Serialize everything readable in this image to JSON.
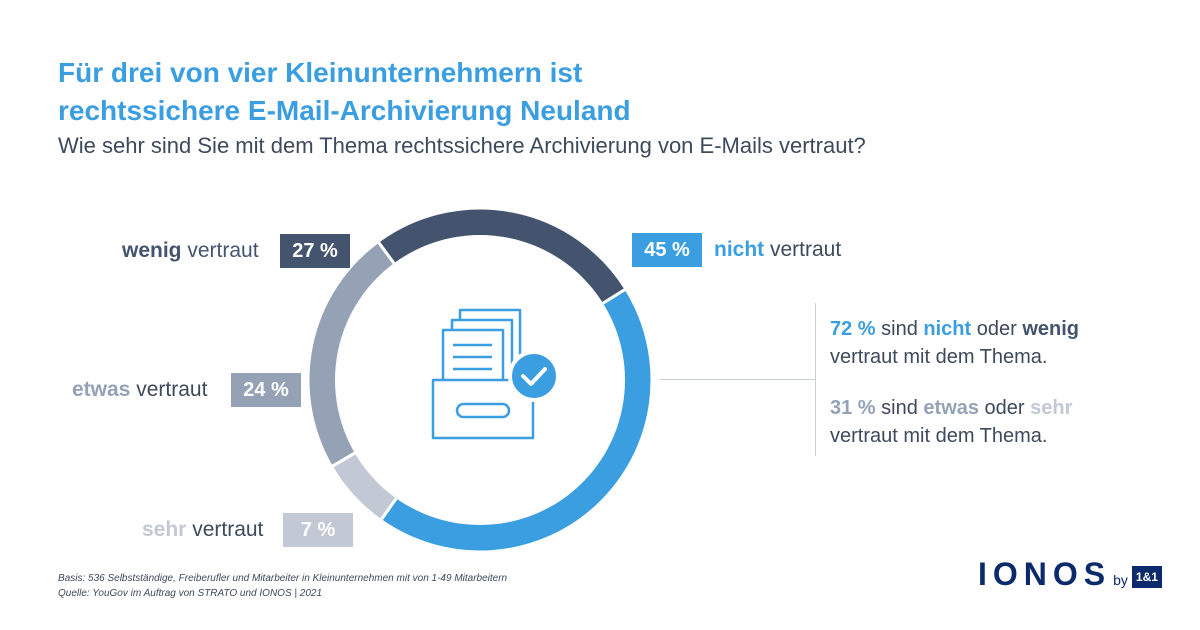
{
  "title_line1": "Für drei von vier Kleinunternehmern ist",
  "title_line2": "rechtssichere E-Mail-Archivierung Neuland",
  "subtitle": "Wie sehr sind Sie mit dem Thema rechtssichere Archivierung von E-Mails vertraut?",
  "chart_data": {
    "type": "pie",
    "variant": "donut",
    "slices": [
      {
        "bold": "nicht",
        "rest": " vertraut",
        "value": 45,
        "value_label": "45 %",
        "color": "#3b9ee0"
      },
      {
        "bold": "sehr",
        "rest": " vertraut",
        "value": 7,
        "value_label": "7 %",
        "color": "#c2c8d4"
      },
      {
        "bold": "etwas",
        "rest": " vertraut",
        "value": 24,
        "value_label": "24 %",
        "color": "#95a2b5"
      },
      {
        "bold": "wenig",
        "rest": " vertraut",
        "value": 27,
        "value_label": "27 %",
        "color": "#44546f"
      }
    ]
  },
  "summary1": {
    "p1": "72 %",
    "t1": " sind ",
    "p2": "nicht",
    "t2": " oder ",
    "p3": "wenig",
    "t3": "vertraut mit dem Thema."
  },
  "summary2": {
    "p1": "31 %",
    "t1": " sind ",
    "p2": "etwas",
    "t2": " oder ",
    "p3": "sehr",
    "t3": "vertraut mit dem Thema."
  },
  "footer_basis": "Basis: 536 Selbstständige, Freiberufler und Mitarbeiter in Kleinunternehmen mit von 1-49 Mitarbeitern",
  "footer_source": "Quelle: YouGov im Auftrag von STRATO und IONOS | 2021",
  "logo": {
    "name": "IONOS",
    "by": "by",
    "brand": "1&1"
  },
  "icon": "archive-box-check-icon",
  "colors": {
    "title": "#3b9ee0",
    "text": "#3d4a5c",
    "brand": "#0b2a6b"
  }
}
